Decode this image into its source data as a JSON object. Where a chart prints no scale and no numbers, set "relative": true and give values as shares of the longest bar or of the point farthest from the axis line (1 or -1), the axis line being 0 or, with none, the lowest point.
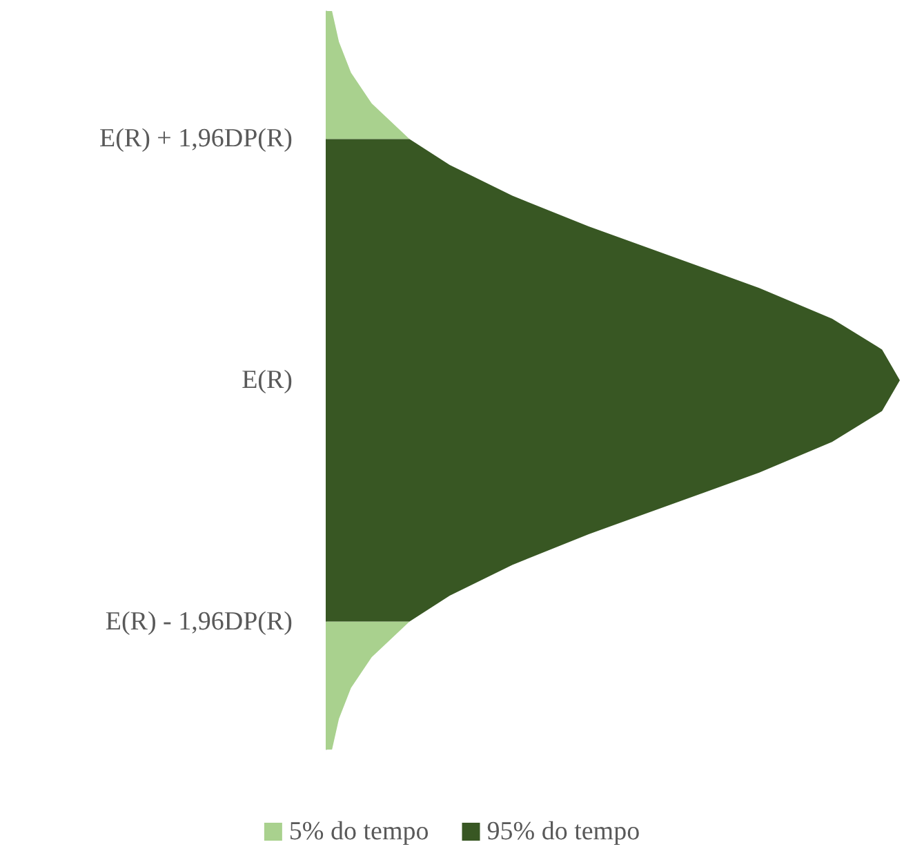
{
  "chart_data": {
    "type": "area",
    "orientation": "horizontal",
    "relative": true,
    "legend": "bottom",
    "ylim": [
      -3,
      3
    ],
    "yticks": [
      {
        "value": -1.96,
        "label": "E(R) - 1,96DP(R)"
      },
      {
        "value": 0,
        "label": "E(R)"
      },
      {
        "value": 1.96,
        "label": "E(R) + 1,96DP(R)"
      }
    ],
    "series": [
      {
        "name": "5% do tempo",
        "color": "#a9d18e",
        "x": [
          -3,
          -2.75,
          -2.5,
          -2.25,
          -1.96,
          null,
          1.96,
          2.25,
          2.5,
          2.75,
          3
        ],
        "values": [
          0.011,
          0.023,
          0.044,
          0.08,
          0.146,
          null,
          0.146,
          0.08,
          0.044,
          0.023,
          0.011
        ]
      },
      {
        "name": "95% do tempo",
        "color": "#385723",
        "x": [
          -1.96,
          -1.75,
          -1.5,
          -1.25,
          -1,
          -0.75,
          -0.5,
          -0.25,
          0,
          0.25,
          0.5,
          0.75,
          1,
          1.25,
          1.5,
          1.75,
          1.96
        ],
        "values": [
          0.146,
          0.216,
          0.325,
          0.458,
          0.607,
          0.755,
          0.882,
          0.969,
          1,
          0.969,
          0.882,
          0.755,
          0.607,
          0.458,
          0.325,
          0.216,
          0.146
        ]
      }
    ]
  }
}
